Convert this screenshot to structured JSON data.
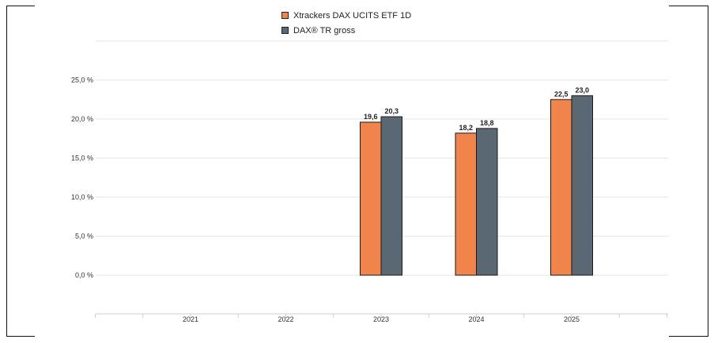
{
  "chart_data": {
    "type": "bar",
    "categories": [
      "2021",
      "2022",
      "2023",
      "2024",
      "2025"
    ],
    "series": [
      {
        "name": "Xtrackers DAX UCITS ETF 1D",
        "color": "#f0844a",
        "values": [
          null,
          null,
          19.6,
          18.2,
          22.5
        ],
        "labels": [
          "",
          "",
          "19,6",
          "18,2",
          "22,5"
        ]
      },
      {
        "name": "DAX® TR gross",
        "color": "#5a6874",
        "values": [
          null,
          null,
          20.3,
          18.8,
          23.0
        ],
        "labels": [
          "",
          "",
          "20,3",
          "18,8",
          "23,0"
        ]
      }
    ],
    "y_ticks": [
      0,
      5,
      10,
      15,
      20,
      25
    ],
    "y_tick_labels": [
      "0,0 %",
      "5,0 %",
      "10,0 %",
      "15,0 %",
      "20,0 %",
      "25,0 %"
    ],
    "ylim": [
      0,
      30
    ],
    "grid": true,
    "legend_position": "top-center"
  }
}
